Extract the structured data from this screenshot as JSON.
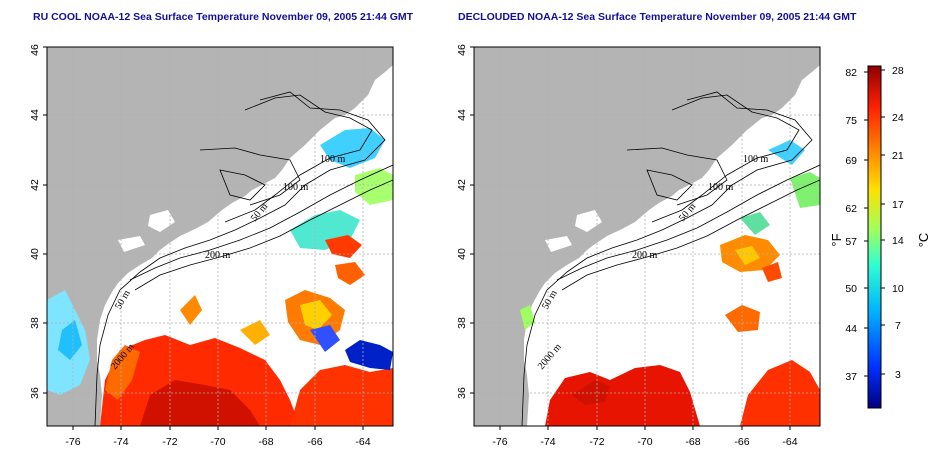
{
  "left_panel": {
    "title": "RU COOL NOAA-12 Sea Surface Temperature November 09, 2005 21:44 GMT"
  },
  "right_panel": {
    "title": "DECLOUDED NOAA-12 Sea Surface Temperature November 09, 2005 21:44 GMT"
  },
  "axes": {
    "lon_ticks": [
      "-76",
      "-74",
      "-72",
      "-70",
      "-68",
      "-66",
      "-64"
    ],
    "lat_ticks": [
      "36",
      "38",
      "40",
      "42",
      "44",
      "46"
    ]
  },
  "contour_labels": [
    "100 m",
    "100 m",
    "50 m",
    "200 m",
    "50 m",
    "2000 m"
  ],
  "colorbar": {
    "fahrenheit_ticks": [
      "82",
      "75",
      "69",
      "62",
      "57",
      "50",
      "44",
      "37"
    ],
    "celsius_ticks": [
      "28",
      "24",
      "21",
      "17",
      "14",
      "10",
      "7",
      "3"
    ],
    "fahrenheit_unit": "°F",
    "celsius_unit": "°C",
    "colors": [
      "#00007f",
      "#0030ff",
      "#00b0ff",
      "#30ffd0",
      "#a0ff60",
      "#ffe000",
      "#ff8000",
      "#ff2000",
      "#8f0000"
    ]
  },
  "colors": {
    "land": "#b4b4b4",
    "grid": "#b0b0b0",
    "title": "#10109a"
  }
}
